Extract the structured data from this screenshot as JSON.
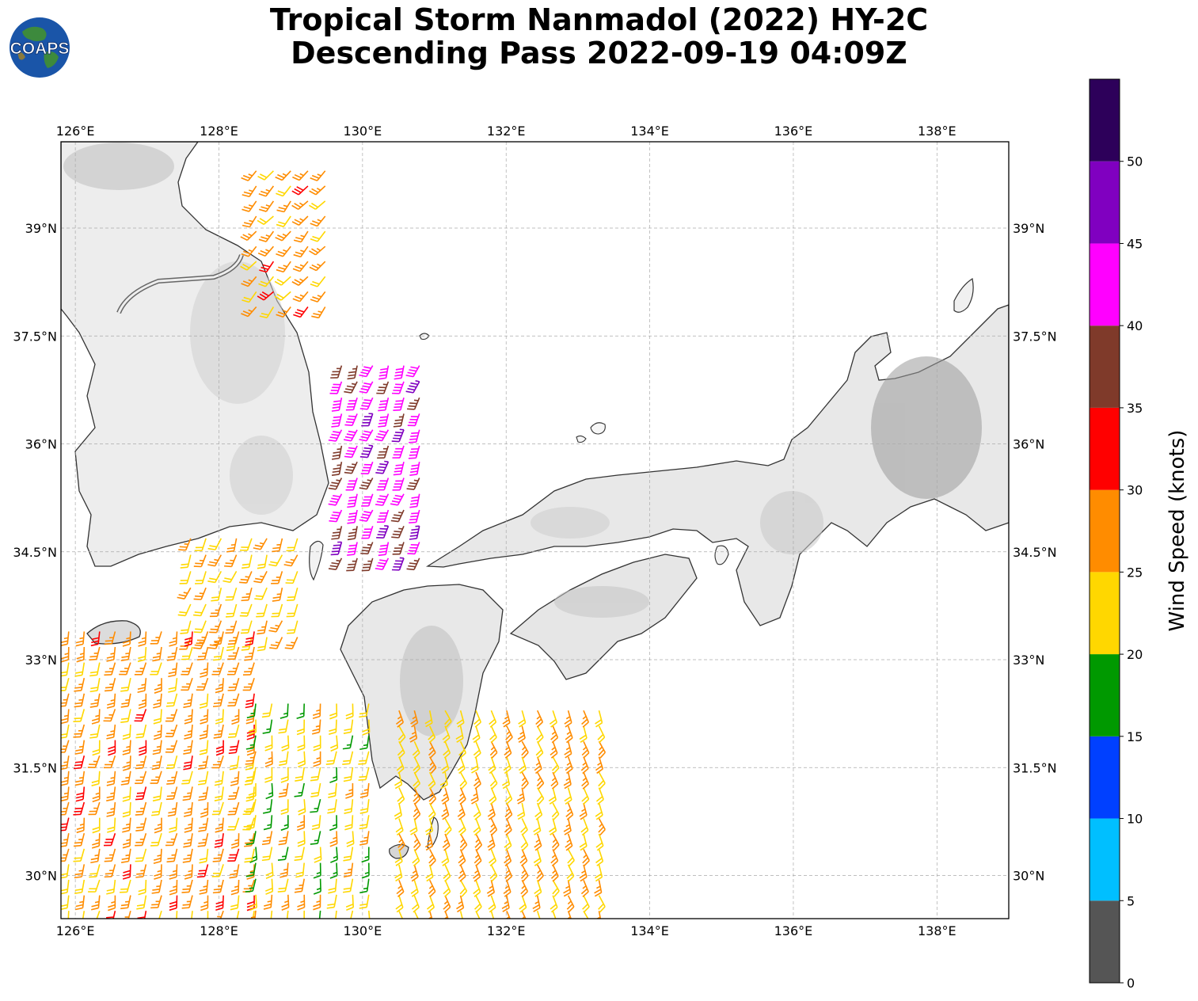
{
  "title": {
    "line1": "Tropical Storm Nanmadol (2022) HY-2C",
    "line2": "Descending Pass 2022-09-19 04:09Z"
  },
  "logo": {
    "text": "COAPS",
    "icon": "globe-logo-icon"
  },
  "map": {
    "lon_range": [
      125.8,
      139.0
    ],
    "lat_range": [
      29.4,
      40.2
    ],
    "lon_ticks": [
      "126°E",
      "128°E",
      "130°E",
      "132°E",
      "134°E",
      "136°E",
      "138°E"
    ],
    "lon_tick_values": [
      126,
      128,
      130,
      132,
      134,
      136,
      138
    ],
    "lat_ticks": [
      "30°N",
      "31.5°N",
      "33°N",
      "34.5°N",
      "36°N",
      "37.5°N",
      "39°N"
    ],
    "lat_tick_values": [
      30,
      31.5,
      33,
      34.5,
      36,
      37.5,
      39
    ],
    "grid": true,
    "coast_color": "#333333"
  },
  "colorbar": {
    "label": "Wind Speed (knots)",
    "ticks": [
      "0",
      "5",
      "10",
      "15",
      "20",
      "25",
      "30",
      "35",
      "40",
      "45",
      "50"
    ],
    "bins": [
      {
        "min": 0,
        "max": 5,
        "color": "#555555"
      },
      {
        "min": 5,
        "max": 10,
        "color": "#00bfff"
      },
      {
        "min": 10,
        "max": 15,
        "color": "#0040ff"
      },
      {
        "min": 15,
        "max": 20,
        "color": "#009900"
      },
      {
        "min": 20,
        "max": 25,
        "color": "#ffd700"
      },
      {
        "min": 25,
        "max": 30,
        "color": "#ff8c00"
      },
      {
        "min": 30,
        "max": 35,
        "color": "#ff0000"
      },
      {
        "min": 35,
        "max": 40,
        "color": "#7f3a2a"
      },
      {
        "min": 40,
        "max": 45,
        "color": "#ff00ff"
      },
      {
        "min": 45,
        "max": 50,
        "color": "#8000c0"
      },
      {
        "min": 50,
        "max": 55,
        "color": "#2d005a"
      }
    ]
  },
  "wind_groups": [
    {
      "name": "east-sea-north",
      "lon": [
        128.4,
        129.6
      ],
      "lat": [
        37.8,
        39.9
      ],
      "speed_knots": 27,
      "dir": 220
    },
    {
      "name": "east-sea-core",
      "lon": [
        129.6,
        130.9
      ],
      "lat": [
        34.3,
        37.2
      ],
      "speed_knots": 42,
      "dir": 200
    },
    {
      "name": "strait-west",
      "lon": [
        127.5,
        129.2
      ],
      "lat": [
        33.2,
        34.8
      ],
      "speed_knots": 25,
      "dir": 200
    },
    {
      "name": "yellow-sea-south",
      "lon": [
        125.8,
        128.6
      ],
      "lat": [
        29.4,
        33.5
      ],
      "speed_knots": 27,
      "dir": 190
    },
    {
      "name": "east-china-sea",
      "lon": [
        128.4,
        130.2
      ],
      "lat": [
        29.4,
        32.5
      ],
      "speed_knots": 22,
      "dir": 185
    },
    {
      "name": "south-kyushu",
      "lon": [
        130.4,
        133.4
      ],
      "lat": [
        29.4,
        32.4
      ],
      "speed_knots": 25,
      "dir": 160
    }
  ]
}
